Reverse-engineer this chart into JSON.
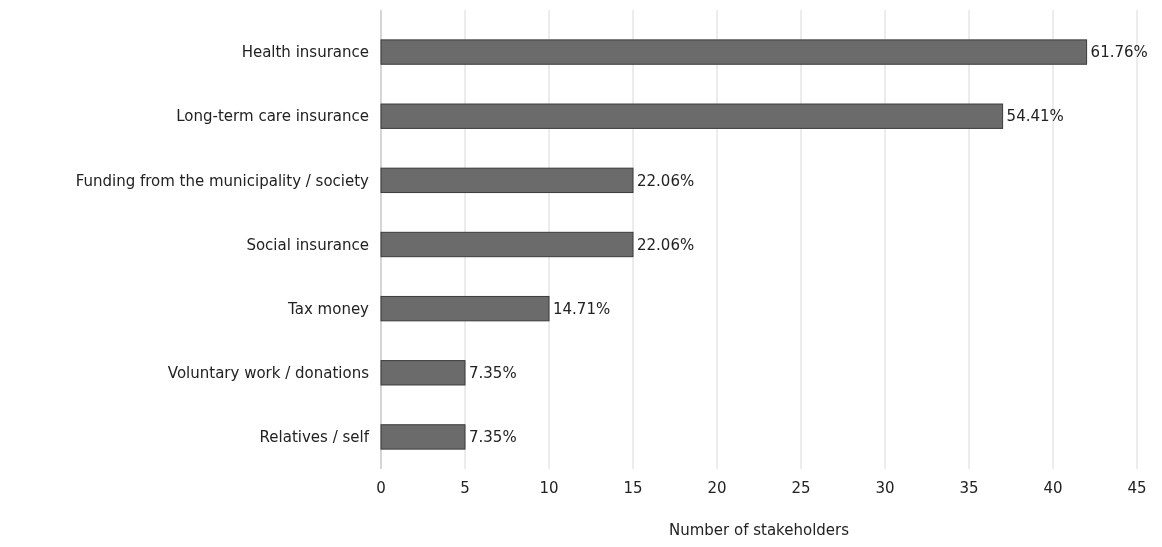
{
  "chart_data": {
    "type": "bar",
    "orientation": "horizontal",
    "xlabel": "Number of stakeholders",
    "categories": [
      "Health insurance",
      "Long-term care insurance",
      "Funding from the municipality / society",
      "Social insurance",
      "Tax money",
      "Voluntary work / donations",
      "Relatives / self"
    ],
    "values": [
      42,
      37,
      15,
      15,
      10,
      5,
      5
    ],
    "annotations": [
      {
        "text": "61.76%",
        "x": 42,
        "y": "Health insurance"
      },
      {
        "text": "54.41%",
        "x": 37,
        "y": "Long-term care insurance"
      },
      {
        "text": "22.06%",
        "x": 15,
        "y": "Funding from the municipality / society"
      },
      {
        "text": "22.06%",
        "x": 15,
        "y": "Social insurance"
      },
      {
        "text": "14.71%",
        "x": 10,
        "y": "Tax money"
      },
      {
        "text": "7.35%",
        "x": 5,
        "y": "Voluntary work / donations"
      },
      {
        "text": "7.35%",
        "x": 5,
        "y": "Relatives / self"
      }
    ],
    "color": "#6b6b6b",
    "xlim": [
      0,
      45
    ],
    "xticks": [
      0,
      5,
      10,
      15,
      20,
      25,
      30,
      35,
      40,
      45
    ],
    "grid": "x"
  }
}
